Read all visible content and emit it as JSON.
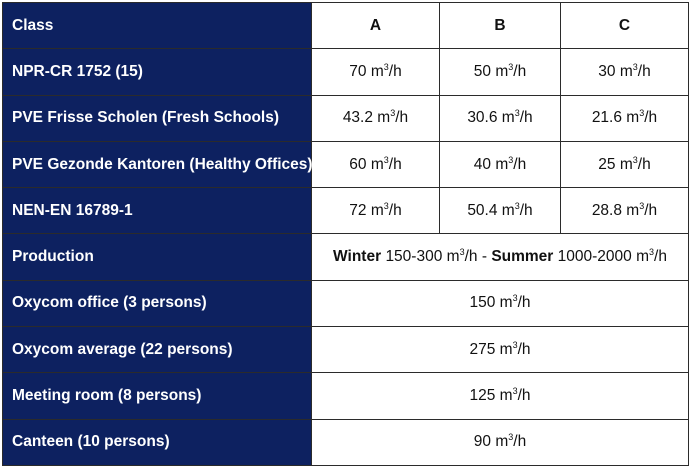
{
  "header": {
    "label": "Class",
    "a": "A",
    "b": "B",
    "c": "C"
  },
  "unit": {
    "base": "m",
    "exp": "3",
    "suffix": "/h"
  },
  "class_rows": [
    {
      "label": "NPR-CR 1752 (15)",
      "a": "70",
      "b": "50",
      "c": "30"
    },
    {
      "label": "PVE Frisse Scholen (Fresh Schools)",
      "a": "43.2",
      "b": "30.6",
      "c": "21.6"
    },
    {
      "label": "PVE Gezonde Kantoren (Healthy Offices)",
      "a": "60",
      "b": "40",
      "c": "25"
    },
    {
      "label": "NEN-EN 16789-1",
      "a": "72",
      "b": "50.4",
      "c": "28.8"
    }
  ],
  "production": {
    "label": "Production",
    "winter_label": "Winter",
    "winter_range": "150-300",
    "separator": "-",
    "summer_label": "Summer",
    "summer_range": "1000-2000"
  },
  "span_rows": [
    {
      "label": "Oxycom office (3 persons)",
      "value": "150"
    },
    {
      "label": "Oxycom average (22 persons)",
      "value": "275"
    },
    {
      "label": "Meeting room (8 persons)",
      "value": "125"
    },
    {
      "label": "Canteen (10 persons)",
      "value": "90"
    }
  ]
}
